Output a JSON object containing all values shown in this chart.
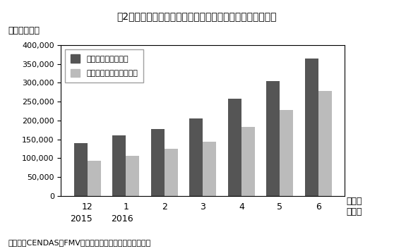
{
  "title": "囲2　基礎バスケット価格、基礎食料バスケット価格の推移",
  "ylabel": "（ボリバル）",
  "xlabel_month": "（月）",
  "xlabel_year": "（年）",
  "source": "（出所）CENDAS－FMVの公表値を報道から抜出して作成",
  "cat_labels_top": [
    "12",
    "1",
    "2",
    "3",
    "4",
    "5",
    "6"
  ],
  "cat_labels_bot": [
    "2015",
    "2016",
    "",
    "",
    "",
    "",
    ""
  ],
  "series1_label": "基礎バスケット価格",
  "series2_label": "基礎食料バスケット価格",
  "series1_values": [
    140000,
    160000,
    177000,
    205000,
    258000,
    305000,
    365000
  ],
  "series2_values": [
    93000,
    107000,
    124000,
    144000,
    183000,
    227000,
    278000
  ],
  "series1_color": "#555555",
  "series2_color": "#bbbbbb",
  "ylim": [
    0,
    400000
  ],
  "yticks": [
    0,
    50000,
    100000,
    150000,
    200000,
    250000,
    300000,
    350000,
    400000
  ],
  "background_color": "#ffffff",
  "bar_width": 0.35
}
